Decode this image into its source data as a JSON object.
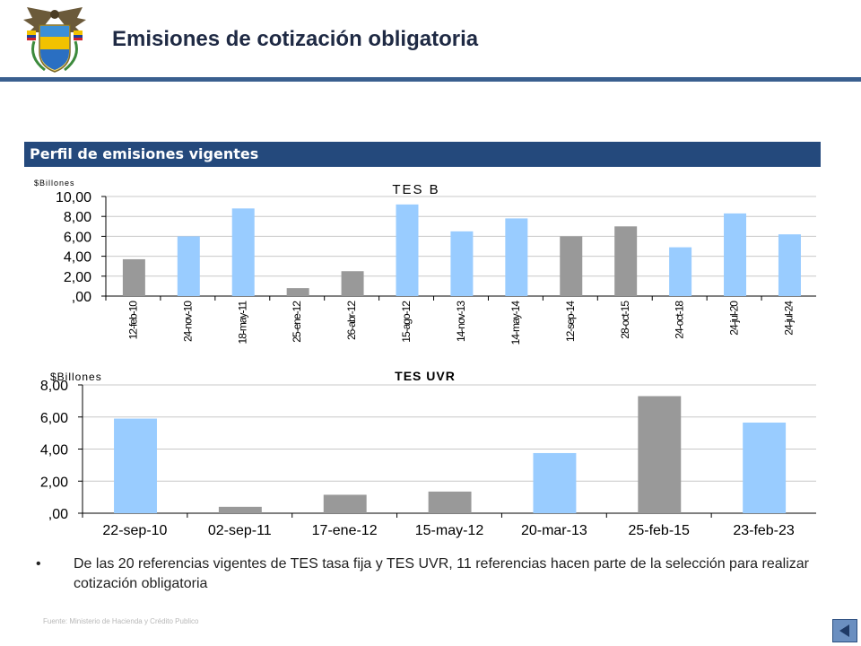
{
  "header": {
    "title": "Emisiones de cotización obligatoria"
  },
  "section": {
    "title": "Perfil de emisiones vigentes"
  },
  "chart_data": [
    {
      "type": "bar",
      "title": "TES B",
      "ylabel": "$Billones",
      "xlabel": "",
      "ylim": [
        0,
        10
      ],
      "y_ticks": [
        ",00",
        "2,00",
        "4,00",
        "6,00",
        "8,00",
        "10,00"
      ],
      "grid": true,
      "categories": [
        "12-feb-10",
        "24-nov-10",
        "18-may-11",
        "25-ene-12",
        "26-abr-12",
        "15-ago-12",
        "14-nov-13",
        "14-may-14",
        "12-sep-14",
        "28-oct-15",
        "24-oct-18",
        "24-jul-20",
        "24-jul-24"
      ],
      "values": [
        3.7,
        6.0,
        8.8,
        0.8,
        2.5,
        9.2,
        6.5,
        7.8,
        6.0,
        7.0,
        4.9,
        8.3,
        6.2
      ],
      "bar_colors": [
        "#999999",
        "#99ccff",
        "#99ccff",
        "#999999",
        "#999999",
        "#99ccff",
        "#99ccff",
        "#99ccff",
        "#999999",
        "#999999",
        "#99ccff",
        "#99ccff",
        "#99ccff"
      ]
    },
    {
      "type": "bar",
      "title": "TES UVR",
      "ylabel": "$Billones",
      "xlabel": "",
      "ylim": [
        0,
        8
      ],
      "y_ticks": [
        ",00",
        "2,00",
        "4,00",
        "6,00",
        "8,00"
      ],
      "grid": true,
      "categories": [
        "22-sep-10",
        "02-sep-11",
        "17-ene-12",
        "15-may-12",
        "20-mar-13",
        "25-feb-15",
        "23-feb-23"
      ],
      "values": [
        5.9,
        0.4,
        1.15,
        1.35,
        3.75,
        7.3,
        5.65
      ],
      "bar_colors": [
        "#99ccff",
        "#999999",
        "#999999",
        "#999999",
        "#99ccff",
        "#999999",
        "#99ccff"
      ]
    }
  ],
  "bullet": {
    "symbol": "•",
    "text": "De las 20 referencias vigentes de TES tasa fija y TES UVR, 11 referencias hacen parte de la selección para realizar cotización obligatoria"
  },
  "footer": {
    "source": "Fuente: Ministerio de Hacienda y Crédito Publico"
  },
  "colors": {
    "accent_bar": "#24497c",
    "header_rule": "#3a5f8f",
    "bar_light": "#99ccff",
    "bar_gray": "#999999"
  },
  "icons": {
    "logo": "colombia-coat-of-arms-icon",
    "nav": "nav-button-icon"
  }
}
